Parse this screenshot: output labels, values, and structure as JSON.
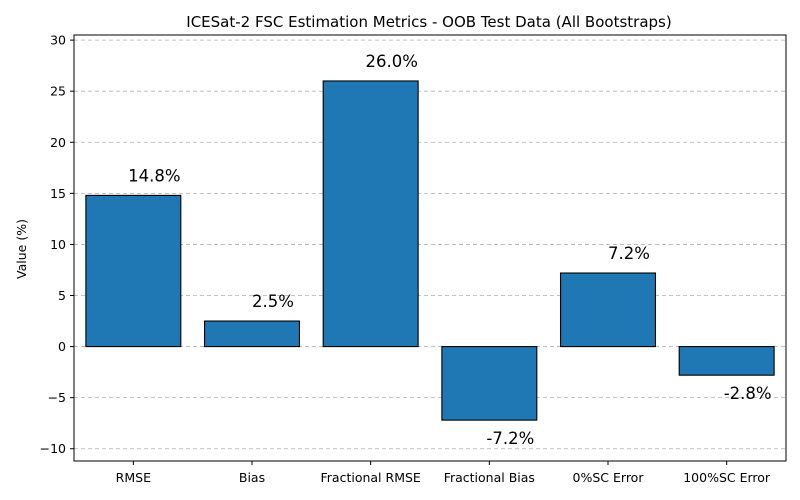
{
  "chart_data": {
    "type": "bar",
    "title": "ICESat-2 FSC Estimation Metrics - OOB Test Data (All Bootstraps)",
    "xlabel": "",
    "ylabel": "Value (%)",
    "categories": [
      "RMSE",
      "Bias",
      "Fractional RMSE",
      "Fractional Bias",
      "0%SC Error",
      "100%SC Error"
    ],
    "values": [
      14.8,
      2.5,
      26.0,
      -7.2,
      7.2,
      -2.8
    ],
    "data_labels": [
      "14.8%",
      "2.5%",
      "26.0%",
      "-7.2%",
      "7.2%",
      "-2.8%"
    ],
    "ylim": [
      -11.2,
      30.5
    ],
    "yticks": [
      -10,
      -5,
      0,
      5,
      10,
      15,
      20,
      25,
      30
    ],
    "ytick_labels": [
      "−10",
      "−5",
      "0",
      "5",
      "10",
      "15",
      "20",
      "25",
      "30"
    ],
    "grid": "y-dashed",
    "bar_color": "#1f77b4"
  }
}
